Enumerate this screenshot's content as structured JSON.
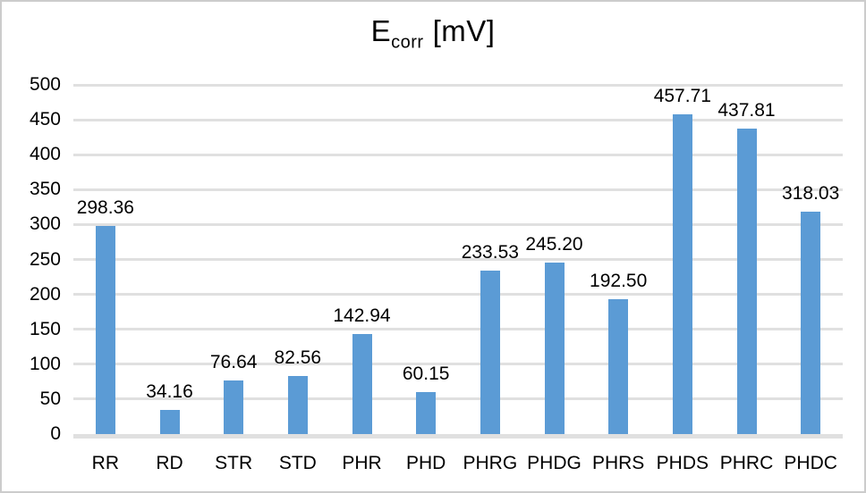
{
  "chart_data": {
    "type": "bar",
    "title": {
      "main": "E",
      "sub": "corr",
      "unit": "[mV]"
    },
    "categories": [
      "RR",
      "RD",
      "STR",
      "STD",
      "PHR",
      "PHD",
      "PHRG",
      "PHDG",
      "PHRS",
      "PHDS",
      "PHRC",
      "PHDC"
    ],
    "values": [
      298.36,
      34.16,
      76.64,
      82.56,
      142.94,
      60.15,
      233.53,
      245.2,
      192.5,
      457.71,
      437.81,
      318.03
    ],
    "value_labels": [
      "298.36",
      "34.16",
      "76.64",
      "82.56",
      "142.94",
      "60.15",
      "233.53",
      "245.20",
      "192.50",
      "457.71",
      "437.81",
      "318.03"
    ],
    "yticks": [
      0,
      50,
      100,
      150,
      200,
      250,
      300,
      350,
      400,
      450,
      500
    ],
    "ylim": [
      0,
      500
    ],
    "xlabel": "",
    "ylabel": "",
    "grid": "horizontal",
    "legend_position": "none",
    "bar_color": "#5B9BD5",
    "gridline_color": "#E0E0E0",
    "axis_line_color": "#E0E0E0",
    "background_color": "#FFFFFF",
    "border_color": "#CCCCCC",
    "text_color": "#000000"
  }
}
